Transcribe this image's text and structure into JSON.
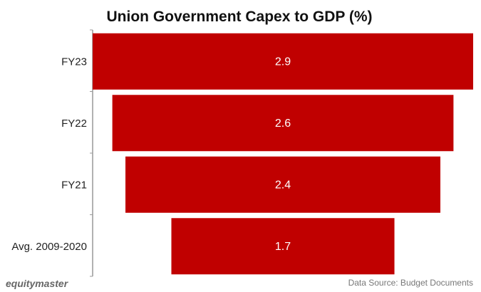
{
  "chart_data": {
    "type": "bar",
    "orientation": "horizontal-funnel",
    "title": "Union Government Capex to GDP (%)",
    "categories": [
      "FY23",
      "FY22",
      "FY21",
      "Avg. 2009-2020"
    ],
    "values": [
      2.9,
      2.6,
      2.4,
      1.7
    ],
    "data_labels": [
      "2.9",
      "2.6",
      "2.4",
      "1.7"
    ],
    "xlabel": "",
    "ylabel": "",
    "grid": false,
    "legend": "none",
    "bar_color": "#c00000"
  },
  "footer": {
    "brand": "equitymaster",
    "source": "Data Source: Budget Documents"
  }
}
